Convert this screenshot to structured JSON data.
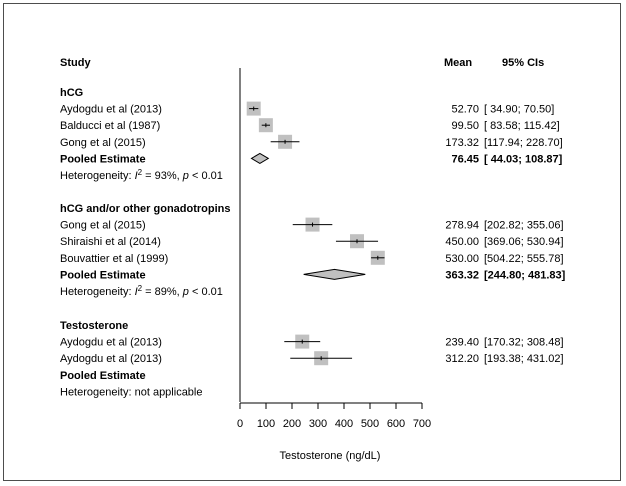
{
  "chart_data": {
    "type": "forest",
    "headers": {
      "study": "Study",
      "mean": "Mean",
      "ci": "95% CIs"
    },
    "xlabel": "Testosterone (ng/dL)",
    "xlim": [
      0,
      700
    ],
    "xticks": [
      0,
      100,
      200,
      300,
      400,
      500,
      600,
      700
    ],
    "groups": [
      {
        "name": "hCG",
        "studies": [
          {
            "label": "Aydogdu et al (2013)",
            "mean": 52.7,
            "lo": 34.9,
            "hi": 70.5,
            "mean_text": "52.70",
            "ci_text": "[ 34.90;  70.50]"
          },
          {
            "label": "Balducci et al (1987)",
            "mean": 99.5,
            "lo": 83.58,
            "hi": 115.42,
            "mean_text": "99.50",
            "ci_text": "[ 83.58; 115.42]"
          },
          {
            "label": "Gong et al (2015)",
            "mean": 173.32,
            "lo": 117.94,
            "hi": 228.7,
            "mean_text": "173.32",
            "ci_text": "[117.94; 228.70]"
          }
        ],
        "pooled": {
          "label": "Pooled Estimate",
          "mean": 76.45,
          "lo": 44.03,
          "hi": 108.87,
          "mean_text": "76.45",
          "ci_text": "[ 44.03; 108.87]"
        },
        "heterogeneity": {
          "prefix": "Heterogeneity: ",
          "i": "I",
          "sup": "2",
          "mid": " = 93%, ",
          "p": "p",
          "suffix": " < 0.01"
        }
      },
      {
        "name": "hCG and/or other gonadotropins",
        "studies": [
          {
            "label": "Gong et al (2015)",
            "mean": 278.94,
            "lo": 202.82,
            "hi": 355.06,
            "mean_text": "278.94",
            "ci_text": "[202.82; 355.06]"
          },
          {
            "label": "Shiraishi et al (2014)",
            "mean": 450.0,
            "lo": 369.06,
            "hi": 530.94,
            "mean_text": "450.00",
            "ci_text": "[369.06; 530.94]"
          },
          {
            "label": "Bouvattier et al (1999)",
            "mean": 530.0,
            "lo": 504.22,
            "hi": 555.78,
            "mean_text": "530.00",
            "ci_text": "[504.22; 555.78]"
          }
        ],
        "pooled": {
          "label": "Pooled Estimate",
          "mean": 363.32,
          "lo": 244.8,
          "hi": 481.83,
          "mean_text": "363.32",
          "ci_text": "[244.80; 481.83]"
        },
        "heterogeneity": {
          "prefix": "Heterogeneity: ",
          "i": "I",
          "sup": "2",
          "mid": " = 89%, ",
          "p": "p",
          "suffix": " < 0.01"
        }
      },
      {
        "name": "Testosterone",
        "studies": [
          {
            "label": "Aydogdu et al (2013)",
            "mean": 239.4,
            "lo": 170.32,
            "hi": 308.48,
            "mean_text": "239.40",
            "ci_text": "[170.32; 308.48]"
          },
          {
            "label": "Aydogdu et al (2013)",
            "mean": 312.2,
            "lo": 193.38,
            "hi": 431.02,
            "mean_text": "312.20",
            "ci_text": "[193.38; 431.02]"
          }
        ],
        "pooled": {
          "label": "Pooled Estimate"
        },
        "heterogeneity": {
          "text": "Heterogeneity: not applicable"
        }
      }
    ],
    "marker_color": "#c0c0c0"
  }
}
